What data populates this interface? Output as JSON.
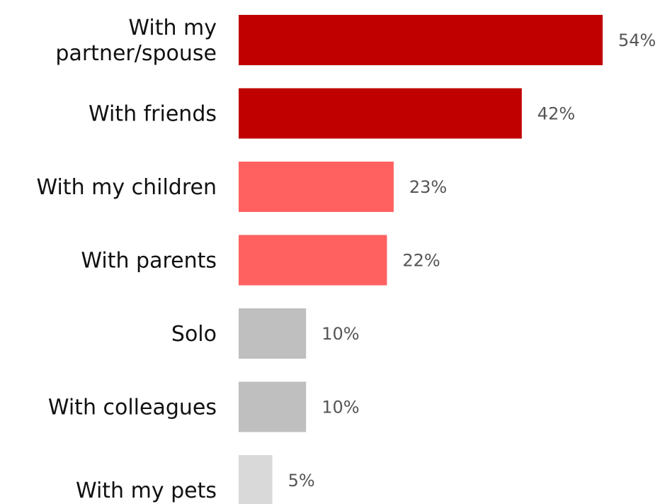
{
  "chart_data": {
    "type": "bar",
    "orientation": "horizontal",
    "categories": [
      "With my partner/spouse",
      "With friends",
      "With my children",
      "With parents",
      "Solo",
      "With colleagues",
      "With my pets"
    ],
    "category_label_lines": [
      [
        "With my",
        "partner/spouse"
      ],
      [
        "With friends"
      ],
      [
        "With my children"
      ],
      [
        "With parents"
      ],
      [
        "Solo"
      ],
      [
        "With colleagues"
      ],
      [
        "With my pets"
      ]
    ],
    "values": [
      54,
      42,
      23,
      22,
      10,
      10,
      5
    ],
    "value_labels": [
      "54%",
      "42%",
      "23%",
      "22%",
      "10%",
      "10%",
      "5%"
    ],
    "bar_colors": [
      "#c00000",
      "#c00000",
      "#ff6161",
      "#ff6161",
      "#bfbfbf",
      "#bfbfbf",
      "#d9d9d9"
    ],
    "title": "",
    "xlabel": "",
    "ylabel": "",
    "xlim": [
      0,
      54
    ],
    "grid": false,
    "legend": "none"
  }
}
